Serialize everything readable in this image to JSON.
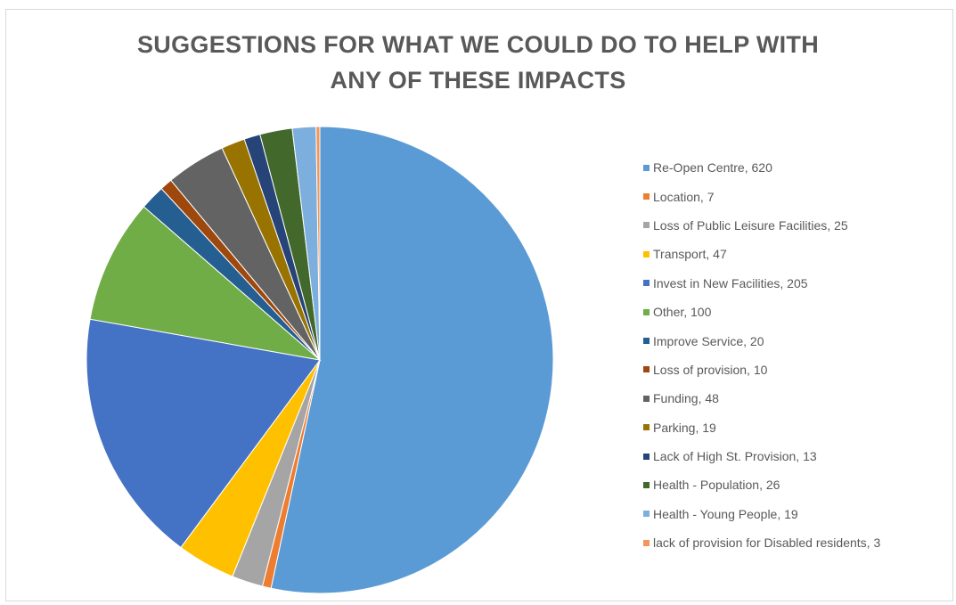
{
  "chart_data": {
    "type": "pie",
    "title_lines": [
      "SUGGESTIONS FOR WHAT WE COULD DO TO HELP WITH",
      "ANY OF THESE IMPACTS"
    ],
    "legend_position": "right",
    "slices": [
      {
        "label": "Re-Open Centre",
        "value": 620,
        "color": "#5b9bd5",
        "legend_text": "Re-Open Centre, 620"
      },
      {
        "label": "Location",
        "value": 7,
        "color": "#ed7d31",
        "legend_text": "Location, 7"
      },
      {
        "label": "Loss of Public Leisure Facilities",
        "value": 25,
        "color": "#a5a5a5",
        "legend_text": "Loss of Public Leisure Facilities, 25"
      },
      {
        "label": "Transport",
        "value": 47,
        "color": "#ffc000",
        "legend_text": "Transport, 47"
      },
      {
        "label": "Invest in New Facilities",
        "value": 205,
        "color": "#4472c4",
        "legend_text": "Invest in New Facilities, 205"
      },
      {
        "label": "Other",
        "value": 100,
        "color": "#70ad47",
        "legend_text": "Other, 100"
      },
      {
        "label": "Improve Service",
        "value": 20,
        "color": "#255e91",
        "legend_text": "Improve Service, 20"
      },
      {
        "label": "Loss of provision",
        "value": 10,
        "color": "#9e480e",
        "legend_text": "Loss of provision, 10"
      },
      {
        "label": "Funding",
        "value": 48,
        "color": "#636363",
        "legend_text": "Funding, 48"
      },
      {
        "label": "Parking",
        "value": 19,
        "color": "#997300",
        "legend_text": "Parking, 19"
      },
      {
        "label": "Lack of High St. Provision",
        "value": 13,
        "color": "#264478",
        "legend_text": "Lack of High St. Provision, 13"
      },
      {
        "label": "Health - Population",
        "value": 26,
        "color": "#43682b",
        "legend_text": "Health - Population, 26"
      },
      {
        "label": "Health - Young People",
        "value": 19,
        "color": "#7cafdd",
        "legend_text": "Health - Young People, 19"
      },
      {
        "label": "lack of provision for Disabled residents",
        "value": 3,
        "color": "#f1975a",
        "legend_text": "lack of provision for Disabled residents, 3"
      }
    ]
  }
}
